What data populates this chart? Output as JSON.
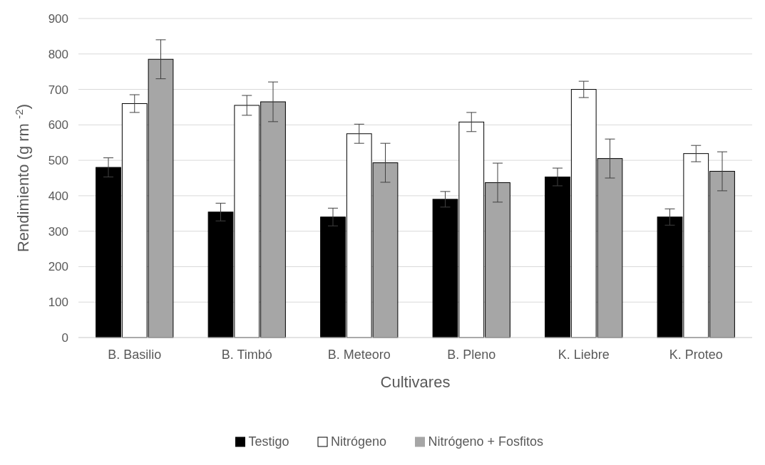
{
  "chart_data": {
    "type": "bar",
    "xlabel": "Cultivares",
    "ylabel": "Rendimiento (g rm $^{-2}$)",
    "categories": [
      "B. Basilio",
      "B. Timbó",
      "B. Meteoro",
      "B. Pleno",
      "K. Liebre",
      "K. Proteo"
    ],
    "series": [
      {
        "name": "Testigo",
        "color": "#000000",
        "values": [
          480,
          354,
          340,
          390,
          453,
          340
        ],
        "errors": [
          27,
          25,
          25,
          22,
          25,
          23
        ]
      },
      {
        "name": "Nitrógeno",
        "color": "#ffffff",
        "values": [
          660,
          655,
          575,
          608,
          700,
          519
        ],
        "errors": [
          25,
          28,
          27,
          27,
          23,
          23
        ]
      },
      {
        "name": "Nitrógeno + Fosfitos",
        "color": "#a6a6a6",
        "values": [
          785,
          665,
          493,
          437,
          505,
          469
        ],
        "errors": [
          55,
          56,
          55,
          55,
          55,
          55
        ]
      }
    ],
    "ylim": [
      0,
      900
    ],
    "yticks": [
      0,
      100,
      200,
      300,
      400,
      500,
      600,
      700,
      800,
      900
    ],
    "grid": "y",
    "legend": "bottom"
  }
}
